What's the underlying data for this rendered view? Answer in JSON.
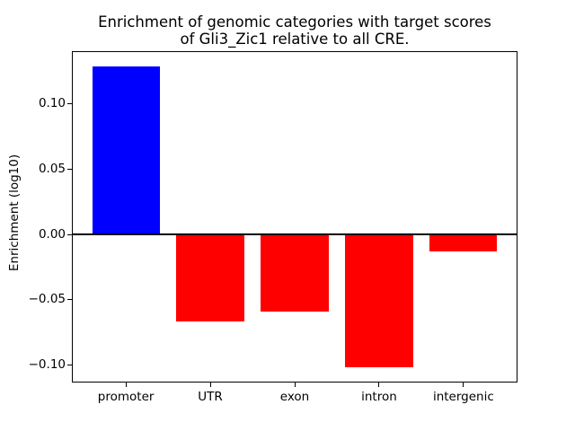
{
  "chart_data": {
    "type": "bar",
    "title": "Enrichment of genomic categories with target scores\nof Gli3_Zic1 relative to all CRE.",
    "xlabel": "",
    "ylabel": "Enrichment (log10)",
    "categories": [
      "promoter",
      "UTR",
      "exon",
      "intron",
      "intergenic"
    ],
    "values": [
      0.129,
      -0.067,
      -0.059,
      -0.102,
      -0.013
    ],
    "bar_colors": [
      "#0000ff",
      "#ff0000",
      "#ff0000",
      "#ff0000",
      "#ff0000"
    ],
    "positive_color": "#0000ff",
    "negative_color": "#ff0000",
    "ylim": [
      -0.1136,
      0.1406
    ],
    "yticks": {
      "values": [
        0.1,
        0.05,
        0.0,
        -0.05,
        -0.1
      ],
      "labels": [
        "0.10",
        "0.05",
        "0.00",
        "−0.05",
        "−0.10"
      ]
    },
    "zero_line": true,
    "grid": false,
    "legend": null,
    "background": "#ffffff",
    "axis_color": "#000000"
  }
}
